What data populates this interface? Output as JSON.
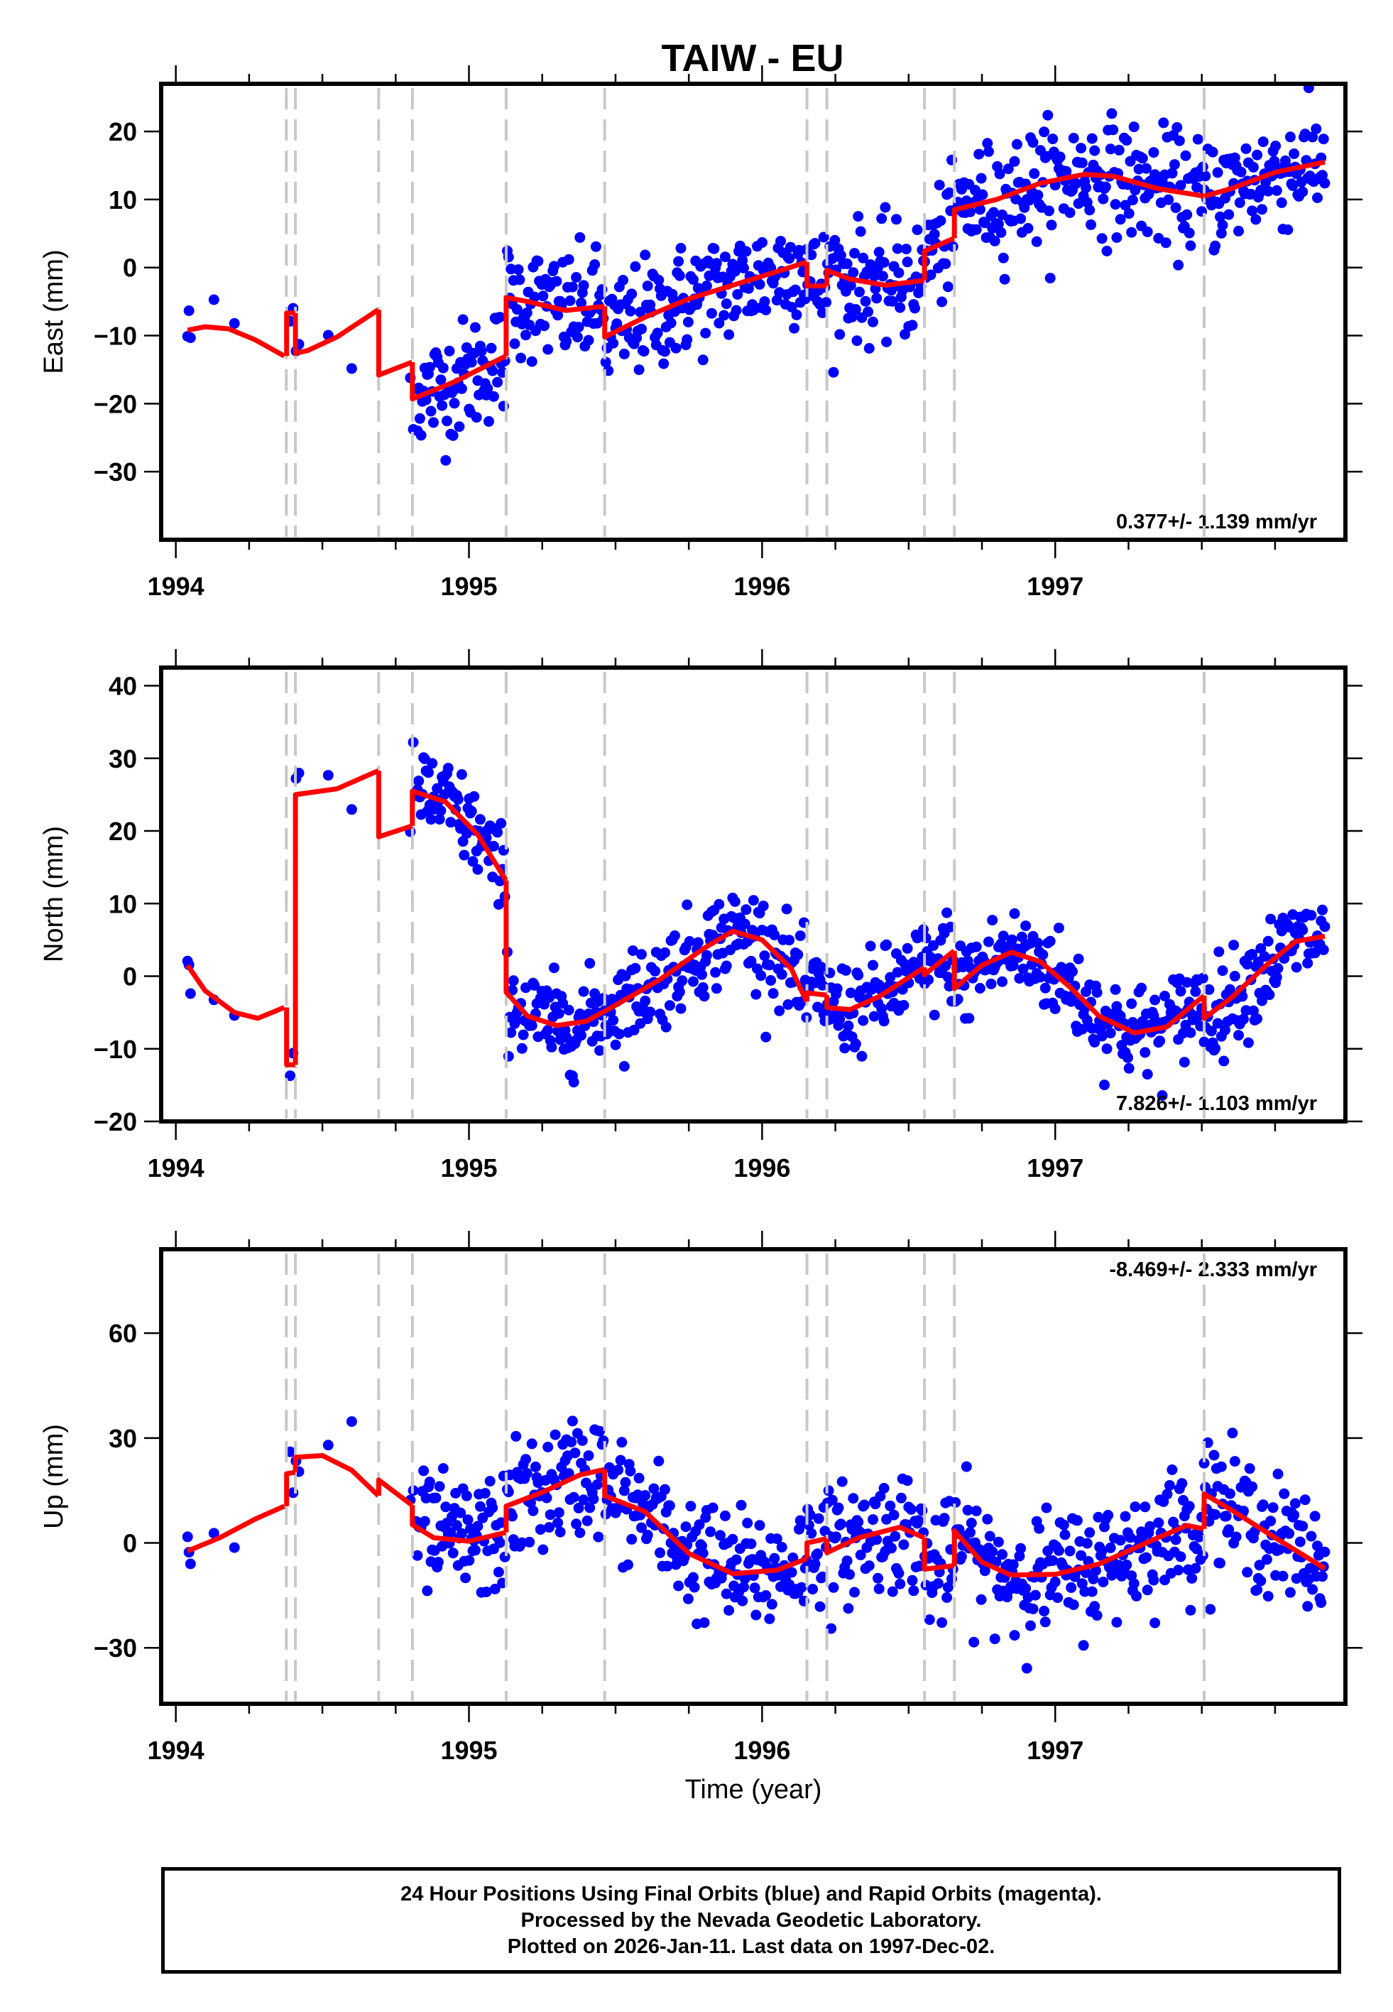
{
  "chart_data": {
    "type": "scatter",
    "title": "TAIW - EU",
    "xlabel": "Time (year)",
    "xlim": [
      1993.95,
      1997.99
    ],
    "x_ticks": [
      1994,
      1995,
      1996,
      1997
    ],
    "x_tick_labels": [
      "1994",
      "1995",
      "1996",
      "1997"
    ],
    "x_minor_step": 0.25,
    "colors": {
      "points": "#0000ff",
      "model": "#ff0000",
      "breaks": "#c8c8c8",
      "frame": "#000000"
    },
    "break_epochs": [
      1994.377,
      1994.408,
      1994.692,
      1994.807,
      1995.127,
      1995.463,
      1996.153,
      1996.221,
      1996.554,
      1996.656,
      1997.508
    ],
    "panels": [
      {
        "name": "east",
        "ylabel": "East (mm)",
        "ylim": [
          -40,
          27
        ],
        "y_ticks": [
          20,
          10,
          0,
          -10,
          -20,
          -30
        ],
        "y_tick_labels": [
          "20",
          "10",
          "0",
          "−10",
          "−20",
          "−30"
        ],
        "rate_text": "0.377+/- 1.139 mm/yr",
        "rate_position": "bottom-right",
        "model_segments": [
          [
            [
              1994.04,
              -9.2
            ],
            [
              1994.1,
              -8.7
            ],
            [
              1994.18,
              -9.0
            ],
            [
              1994.27,
              -10.6
            ],
            [
              1994.37,
              -13.0
            ]
          ],
          [
            [
              1994.378,
              -13.0
            ],
            [
              1994.378,
              -6.7
            ],
            [
              1994.407,
              -6.7
            ]
          ],
          [
            [
              1994.408,
              -6.7
            ],
            [
              1994.408,
              -12.6
            ],
            [
              1994.45,
              -12.2
            ],
            [
              1994.55,
              -10.2
            ],
            [
              1994.691,
              -6.2
            ]
          ],
          [
            [
              1994.692,
              -6.2
            ],
            [
              1994.692,
              -15.8
            ],
            [
              1994.806,
              -13.9
            ]
          ],
          [
            [
              1994.807,
              -13.9
            ],
            [
              1994.807,
              -19.3
            ],
            [
              1994.95,
              -16.8
            ],
            [
              1995.126,
              -13.0
            ]
          ],
          [
            [
              1995.127,
              -13.0
            ],
            [
              1995.127,
              -4.4
            ],
            [
              1995.2,
              -5.0
            ],
            [
              1995.33,
              -6.3
            ],
            [
              1995.462,
              -5.7
            ]
          ],
          [
            [
              1995.463,
              -5.7
            ],
            [
              1995.463,
              -10.2
            ],
            [
              1995.6,
              -7.3
            ],
            [
              1995.75,
              -4.6
            ],
            [
              1995.9,
              -2.6
            ],
            [
              1996.05,
              -0.6
            ],
            [
              1996.152,
              0.8
            ]
          ],
          [
            [
              1996.153,
              0.8
            ],
            [
              1996.153,
              -2.7
            ],
            [
              1996.22,
              -2.7
            ]
          ],
          [
            [
              1996.221,
              -2.7
            ],
            [
              1996.221,
              -0.4
            ],
            [
              1996.3,
              -1.7
            ],
            [
              1996.42,
              -2.6
            ],
            [
              1996.553,
              -1.9
            ]
          ],
          [
            [
              1996.554,
              -1.9
            ],
            [
              1996.554,
              2.4
            ],
            [
              1996.655,
              4.3
            ]
          ],
          [
            [
              1996.656,
              4.3
            ],
            [
              1996.656,
              8.5
            ],
            [
              1996.8,
              10.0
            ],
            [
              1996.95,
              12.4
            ],
            [
              1997.1,
              13.7
            ],
            [
              1997.2,
              13.4
            ],
            [
              1997.35,
              11.6
            ],
            [
              1997.507,
              10.5
            ]
          ],
          [
            [
              1997.508,
              10.5
            ],
            [
              1997.6,
              11.6
            ],
            [
              1997.75,
              14.0
            ],
            [
              1997.92,
              15.5
            ]
          ]
        ],
        "scatter_sigma": 4.2
      },
      {
        "name": "north",
        "ylabel": "North (mm)",
        "ylim": [
          -20,
          42.5
        ],
        "y_ticks": [
          40,
          30,
          20,
          10,
          0,
          -10,
          -20
        ],
        "y_tick_labels": [
          "40",
          "30",
          "20",
          "10",
          "0",
          "−10",
          "−20"
        ],
        "rate_text": "7.826+/- 1.103 mm/yr",
        "rate_position": "bottom-right",
        "model_segments": [
          [
            [
              1994.04,
              1.5
            ],
            [
              1994.1,
              -2.0
            ],
            [
              1994.2,
              -5.0
            ],
            [
              1994.28,
              -5.8
            ],
            [
              1994.37,
              -4.3
            ]
          ],
          [
            [
              1994.378,
              -4.3
            ],
            [
              1994.378,
              -12.2
            ],
            [
              1994.407,
              -12.2
            ]
          ],
          [
            [
              1994.408,
              -12.2
            ],
            [
              1994.408,
              25.0
            ],
            [
              1994.55,
              25.8
            ],
            [
              1994.691,
              28.3
            ]
          ],
          [
            [
              1994.692,
              28.3
            ],
            [
              1994.692,
              19.2
            ],
            [
              1994.806,
              20.7
            ]
          ],
          [
            [
              1994.807,
              20.7
            ],
            [
              1994.807,
              25.5
            ],
            [
              1994.92,
              24.0
            ],
            [
              1995.03,
              19.5
            ],
            [
              1995.126,
              13.2
            ]
          ],
          [
            [
              1995.127,
              13.2
            ],
            [
              1995.127,
              -2.2
            ],
            [
              1995.2,
              -5.5
            ],
            [
              1995.3,
              -6.8
            ],
            [
              1995.4,
              -6.2
            ],
            [
              1995.5,
              -4.0
            ],
            [
              1995.65,
              -0.5
            ],
            [
              1995.8,
              3.8
            ],
            [
              1995.9,
              6.2
            ],
            [
              1996.0,
              5.0
            ],
            [
              1996.1,
              1.0
            ],
            [
              1996.152,
              -3.5
            ]
          ],
          [
            [
              1996.153,
              -3.5
            ],
            [
              1996.153,
              -2.3
            ],
            [
              1996.22,
              -2.6
            ]
          ],
          [
            [
              1996.221,
              -2.6
            ],
            [
              1996.221,
              -4.3
            ],
            [
              1996.3,
              -4.6
            ],
            [
              1996.4,
              -2.8
            ],
            [
              1996.553,
              1.2
            ]
          ],
          [
            [
              1996.554,
              1.2
            ],
            [
              1996.554,
              0.2
            ],
            [
              1996.655,
              3.5
            ]
          ],
          [
            [
              1996.656,
              3.5
            ],
            [
              1996.656,
              -1.7
            ],
            [
              1996.75,
              1.5
            ],
            [
              1996.85,
              3.3
            ],
            [
              1996.95,
              2.0
            ],
            [
              1997.05,
              -1.5
            ],
            [
              1997.15,
              -5.5
            ],
            [
              1997.27,
              -7.8
            ],
            [
              1997.38,
              -7.0
            ],
            [
              1997.507,
              -2.7
            ]
          ],
          [
            [
              1997.508,
              -2.7
            ],
            [
              1997.508,
              -5.8
            ],
            [
              1997.6,
              -3.0
            ],
            [
              1997.72,
              1.5
            ],
            [
              1997.82,
              4.8
            ],
            [
              1997.92,
              5.5
            ]
          ]
        ],
        "scatter_sigma": 3.2
      },
      {
        "name": "up",
        "ylabel": "Up (mm)",
        "ylim": [
          -46,
          84
        ],
        "y_ticks": [
          60,
          30,
          0,
          -30
        ],
        "y_tick_labels": [
          "60",
          "30",
          "0",
          "−30"
        ],
        "rate_text": "-8.469+/- 2.333 mm/yr",
        "rate_position": "top-right",
        "model_segments": [
          [
            [
              1994.04,
              -2.3
            ],
            [
              1994.15,
              1.5
            ],
            [
              1994.27,
              6.8
            ],
            [
              1994.37,
              10.5
            ]
          ],
          [
            [
              1994.378,
              10.5
            ],
            [
              1994.378,
              19.8
            ],
            [
              1994.407,
              20.2
            ]
          ],
          [
            [
              1994.408,
              20.2
            ],
            [
              1994.408,
              24.5
            ],
            [
              1994.5,
              25.0
            ],
            [
              1994.6,
              20.8
            ],
            [
              1994.691,
              13.5
            ]
          ],
          [
            [
              1994.692,
              13.5
            ],
            [
              1994.692,
              18.0
            ],
            [
              1994.806,
              10.8
            ]
          ],
          [
            [
              1994.807,
              10.8
            ],
            [
              1994.807,
              5.2
            ],
            [
              1994.88,
              1.5
            ],
            [
              1995.0,
              0.5
            ],
            [
              1995.126,
              3.0
            ]
          ],
          [
            [
              1995.127,
              3.0
            ],
            [
              1995.127,
              10.5
            ],
            [
              1995.25,
              14.5
            ],
            [
              1995.38,
              19.5
            ],
            [
              1995.462,
              21.0
            ]
          ],
          [
            [
              1995.463,
              21.0
            ],
            [
              1995.463,
              13.5
            ],
            [
              1995.6,
              9.0
            ],
            [
              1995.75,
              -3.0
            ],
            [
              1995.9,
              -8.8
            ],
            [
              1996.05,
              -7.8
            ],
            [
              1996.152,
              -4.5
            ]
          ],
          [
            [
              1996.153,
              -4.5
            ],
            [
              1996.153,
              0.0
            ],
            [
              1996.22,
              1.2
            ]
          ],
          [
            [
              1996.221,
              1.2
            ],
            [
              1996.221,
              -2.8
            ],
            [
              1996.33,
              1.5
            ],
            [
              1996.47,
              4.5
            ],
            [
              1996.553,
              1.5
            ]
          ],
          [
            [
              1996.554,
              1.5
            ],
            [
              1996.554,
              -7.5
            ],
            [
              1996.655,
              -6.5
            ]
          ],
          [
            [
              1996.656,
              -6.5
            ],
            [
              1996.656,
              3.5
            ],
            [
              1996.75,
              -5.5
            ],
            [
              1996.85,
              -9.2
            ],
            [
              1997.0,
              -9.0
            ],
            [
              1997.15,
              -6.0
            ],
            [
              1997.35,
              1.5
            ],
            [
              1997.45,
              5.0
            ],
            [
              1997.507,
              4.0
            ]
          ],
          [
            [
              1997.508,
              4.0
            ],
            [
              1997.508,
              14.0
            ],
            [
              1997.6,
              9.5
            ],
            [
              1997.75,
              1.5
            ],
            [
              1997.92,
              -7.3
            ]
          ]
        ],
        "scatter_sigma": 8.5
      }
    ]
  },
  "footer": {
    "line1": "24 Hour Positions Using Final Orbits (blue) and Rapid Orbits (magenta).",
    "line2": "Processed by the Nevada Geodetic Laboratory.",
    "line3": "Plotted on 2026-Jan-11. Last data on 1997-Dec-02."
  }
}
